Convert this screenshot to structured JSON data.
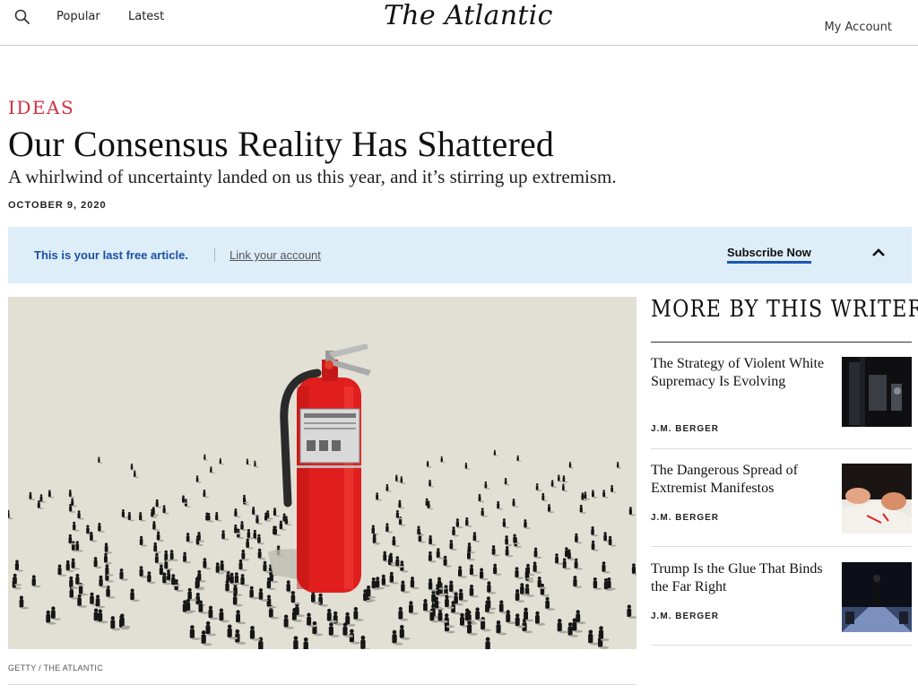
{
  "header": {
    "nav": [
      "Popular",
      "Latest"
    ],
    "logo": "The Atlantic",
    "account": "My Account"
  },
  "article": {
    "section": "IDEAS",
    "title": "Our Consensus Reality Has Shattered",
    "subtitle": "A whirlwind of uncertainty landed on us this year, and it’s stirring up extremism.",
    "date": "OCTOBER 9, 2020",
    "image_credit": "GETTY / THE ATLANTIC"
  },
  "banner": {
    "free_text": "This is your last free article.",
    "link_text": "Link your account",
    "subscribe": "Subscribe Now"
  },
  "sidebar": {
    "title": "MORE BY THIS WRITER",
    "items": [
      {
        "title": "The Strategy of Violent White Supremacy Is Evolving",
        "author": "J.M. BERGER"
      },
      {
        "title": "The Dangerous Spread of Extremist Manifestos",
        "author": "J.M. BERGER"
      },
      {
        "title": "Trump Is the Glue That Binds the Far Right",
        "author": "J.M. BERGER"
      }
    ]
  },
  "colors": {
    "accent_red": "#d0303f",
    "banner_bg": "#ddeef9",
    "banner_blue": "#1c4fa4",
    "extinguisher": "#e01e1e"
  }
}
